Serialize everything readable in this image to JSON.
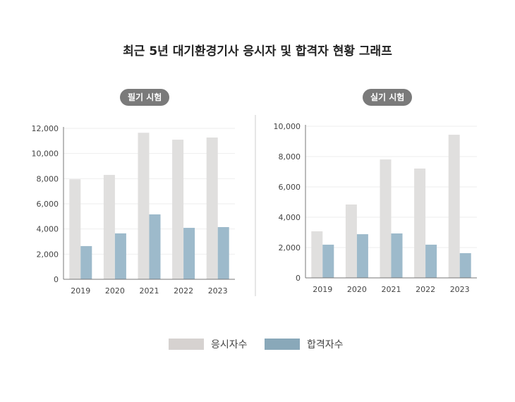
{
  "title": "최근 5년 대기환경기사 응시자 및 합격자 현황 그래프",
  "colors": {
    "applicants": "#e0dfde",
    "passers": "#9dbacb",
    "legend_applicants": "#d6d2d0",
    "legend_passers": "#89a8b9"
  },
  "legend": [
    "응시자수",
    "합격자수"
  ],
  "chart_data": [
    {
      "type": "bar",
      "title": "필기 시험",
      "categories": [
        "2019",
        "2020",
        "2021",
        "2022",
        "2023"
      ],
      "ylim": [
        0,
        12000
      ],
      "yticks": [
        0,
        2000,
        4000,
        6000,
        8000,
        10000,
        12000
      ],
      "ytick_labels": [
        "0",
        "2,000",
        "4,000",
        "6,000",
        "8,000",
        "10,000",
        "12,000"
      ],
      "series": [
        {
          "name": "응시자수",
          "values": [
            7950,
            8300,
            11650,
            11100,
            11270
          ]
        },
        {
          "name": "합격자수",
          "values": [
            2640,
            3650,
            5160,
            4090,
            4150
          ]
        }
      ],
      "grid": true
    },
    {
      "type": "bar",
      "title": "실기 시험",
      "categories": [
        "2019",
        "2020",
        "2021",
        "2022",
        "2023"
      ],
      "ylim": [
        0,
        10000
      ],
      "yticks": [
        0,
        2000,
        4000,
        6000,
        8000,
        10000
      ],
      "ytick_labels": [
        "0",
        "2,000",
        "4,000",
        "6,000",
        "8,000",
        "10,000"
      ],
      "series": [
        {
          "name": "응시자수",
          "values": [
            3070,
            4840,
            7810,
            7210,
            9440
          ]
        },
        {
          "name": "합격자수",
          "values": [
            2190,
            2880,
            2930,
            2190,
            1630
          ]
        }
      ],
      "grid": true
    }
  ]
}
